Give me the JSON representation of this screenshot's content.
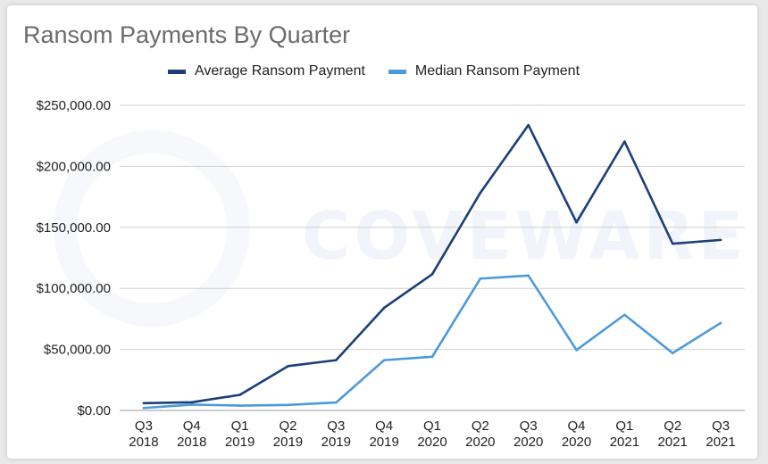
{
  "title": "Ransom Payments By Quarter",
  "watermark": "COVEWARE",
  "chart_data": {
    "type": "line",
    "title": "Ransom Payments By Quarter",
    "categories": [
      "Q3 2018",
      "Q4 2018",
      "Q1 2019",
      "Q2 2019",
      "Q3 2019",
      "Q4 2019",
      "Q1 2020",
      "Q2 2020",
      "Q3 2020",
      "Q4 2020",
      "Q1 2021",
      "Q2 2021",
      "Q3 2021"
    ],
    "category_lines": [
      [
        "Q3",
        "2018"
      ],
      [
        "Q4",
        "2018"
      ],
      [
        "Q1",
        "2019"
      ],
      [
        "Q2",
        "2019"
      ],
      [
        "Q3",
        "2019"
      ],
      [
        "Q4",
        "2019"
      ],
      [
        "Q1",
        "2020"
      ],
      [
        "Q2",
        "2020"
      ],
      [
        "Q3",
        "2020"
      ],
      [
        "Q4",
        "2020"
      ],
      [
        "Q1",
        "2021"
      ],
      [
        "Q2",
        "2021"
      ],
      [
        "Q3",
        "2021"
      ]
    ],
    "series": [
      {
        "name": "Average Ransom Payment",
        "color": "#1b3f78",
        "values": [
          6000,
          6700,
          12800,
          36300,
          41200,
          84100,
          111600,
          178300,
          233800,
          154100,
          220300,
          136600,
          139700
        ]
      },
      {
        "name": "Median Ransom Payment",
        "color": "#4d9ad9",
        "values": [
          2000,
          4800,
          4000,
          4500,
          6500,
          41200,
          44000,
          108000,
          110500,
          49500,
          78400,
          47000,
          71700
        ]
      }
    ],
    "ylim": [
      0,
      250000
    ],
    "yticks": [
      0,
      50000,
      100000,
      150000,
      200000,
      250000
    ],
    "ytick_labels": [
      "$0.00",
      "$50,000.00",
      "$100,000.00",
      "$150,000.00",
      "$200,000.00",
      "$250,000.00"
    ],
    "grid": true,
    "legend": "top"
  }
}
